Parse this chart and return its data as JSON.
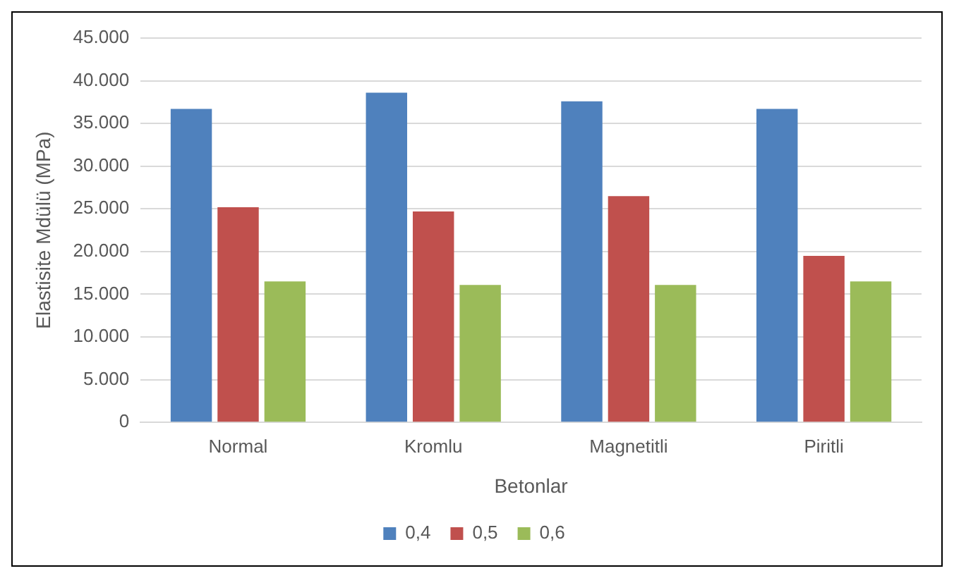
{
  "chart_data": {
    "type": "bar",
    "xlabel": "Betonlar",
    "ylabel": "Elastisite Mdülü (MPa)",
    "categories": [
      "Normal",
      "Kromlu",
      "Magnetitli",
      "Piritli"
    ],
    "series": [
      {
        "name": "0,4",
        "color": "#4f81bd",
        "values": [
          36700,
          38600,
          37600,
          36700
        ]
      },
      {
        "name": "0,5",
        "color": "#c0504d",
        "values": [
          25200,
          24700,
          26500,
          19500
        ]
      },
      {
        "name": "0,6",
        "color": "#9bbb59",
        "values": [
          16500,
          16100,
          16100,
          16500
        ]
      }
    ],
    "ylim": [
      0,
      45000
    ],
    "yticks": [
      0,
      {
        "value": 5000,
        "label": "5.000"
      },
      {
        "value": 10000,
        "label": "10.000"
      },
      {
        "value": 15000,
        "label": "15.000"
      },
      {
        "value": 20000,
        "label": "20.000"
      },
      {
        "value": 25000,
        "label": "25.000"
      },
      {
        "value": 30000,
        "label": "30.000"
      },
      {
        "value": 35000,
        "label": "35.000"
      },
      {
        "value": 40000,
        "label": "40.000"
      },
      {
        "value": 45000,
        "label": "45.000"
      }
    ],
    "grid": "y",
    "legend": "bottom"
  }
}
